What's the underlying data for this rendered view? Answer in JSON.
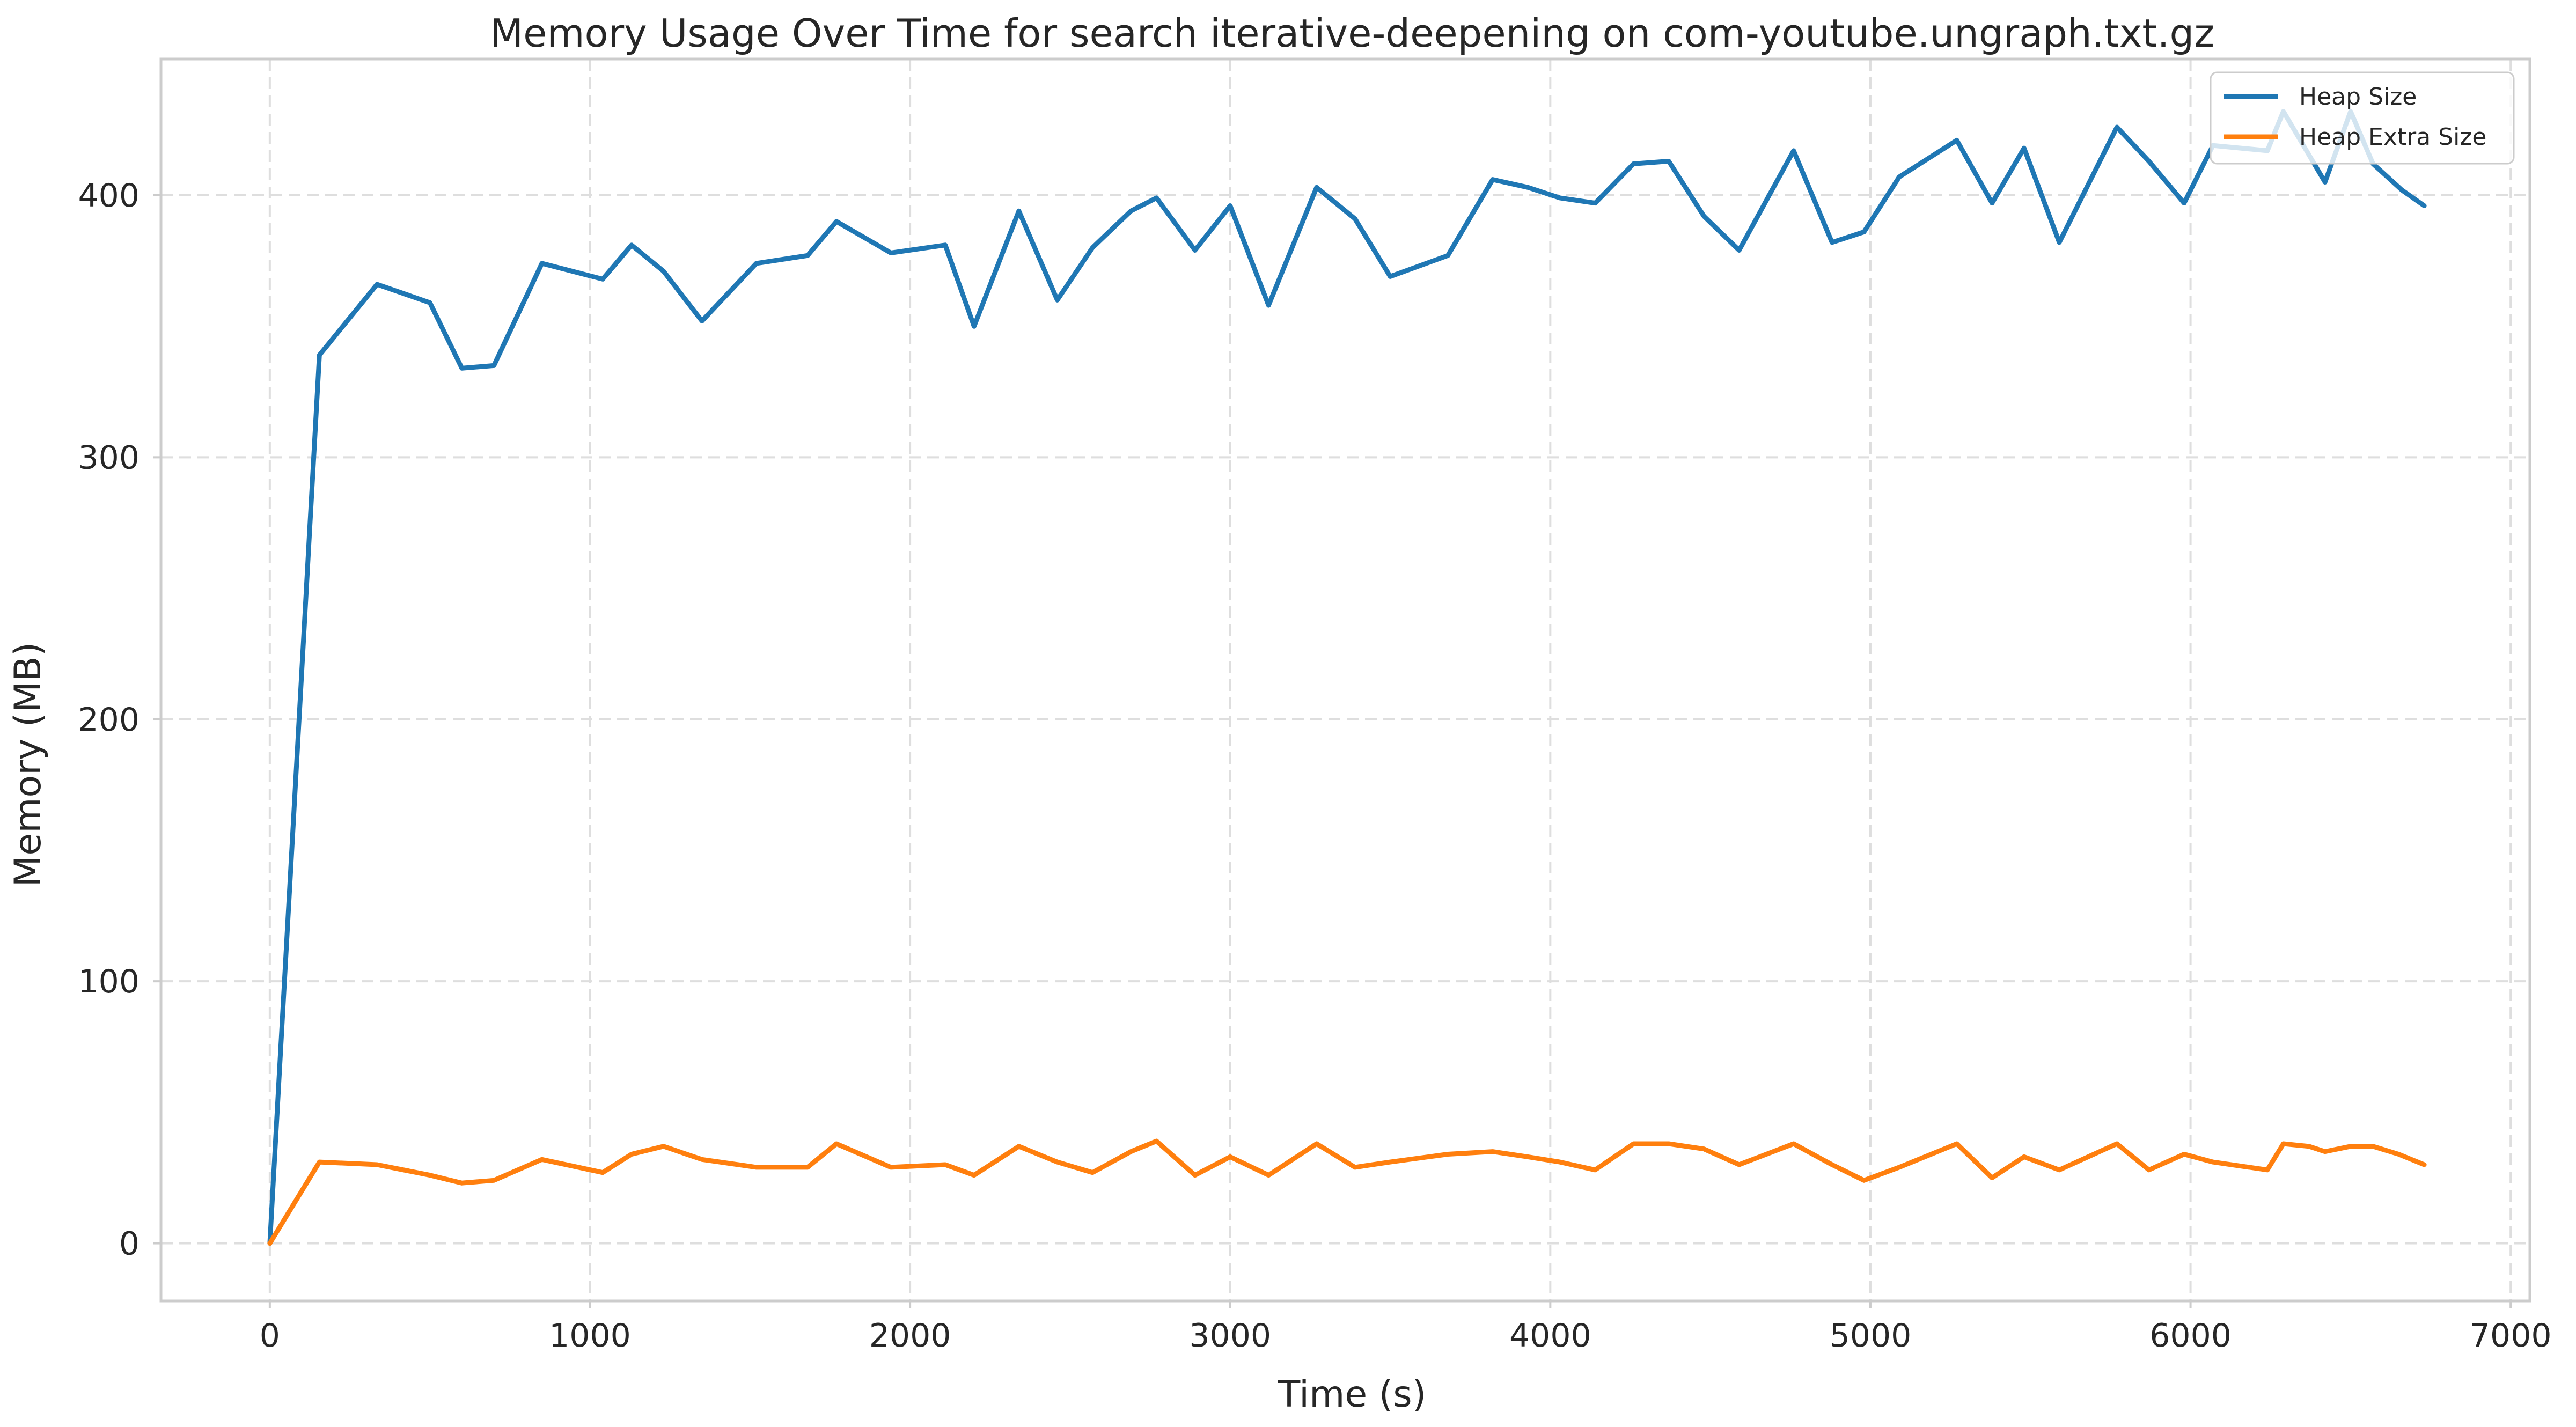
{
  "chart_data": {
    "type": "line",
    "title": "Memory Usage Over Time for search iterative-deepening on com-youtube.ungraph.txt.gz",
    "xlabel": "Time (s)",
    "ylabel": "Memory (MB)",
    "xlim": [
      -340,
      7060
    ],
    "ylim": [
      -22,
      452
    ],
    "xticks": [
      0,
      1000,
      2000,
      3000,
      4000,
      5000,
      6000,
      7000
    ],
    "yticks": [
      0,
      100,
      200,
      300,
      400
    ],
    "grid": true,
    "legend_position": "top-right",
    "series": [
      {
        "name": "Heap Size",
        "color": "#1f77b4",
        "x": [
          0,
          155,
          335,
          500,
          600,
          700,
          850,
          1040,
          1130,
          1230,
          1350,
          1520,
          1680,
          1770,
          1940,
          2110,
          2200,
          2340,
          2460,
          2570,
          2690,
          2770,
          2890,
          3000,
          3120,
          3270,
          3390,
          3500,
          3680,
          3820,
          3930,
          4030,
          4140,
          4260,
          4370,
          4480,
          4590,
          4760,
          4880,
          4980,
          5090,
          5270,
          5380,
          5480,
          5590,
          5770,
          5870,
          5980,
          6070,
          6240,
          6290,
          6420,
          6500,
          6570,
          6660,
          6730
        ],
        "values": [
          0,
          339,
          366,
          359,
          334,
          335,
          374,
          368,
          381,
          371,
          352,
          374,
          377,
          390,
          378,
          381,
          350,
          394,
          360,
          380,
          394,
          399,
          379,
          396,
          358,
          403,
          391,
          369,
          377,
          406,
          403,
          399,
          397,
          412,
          413,
          392,
          379,
          417,
          382,
          386,
          407,
          421,
          397,
          418,
          382,
          426,
          413,
          397,
          419,
          417,
          432,
          405,
          432,
          412,
          402,
          396
        ]
      },
      {
        "name": "Heap Extra Size",
        "color": "#ff7f0e",
        "x": [
          0,
          155,
          335,
          500,
          600,
          700,
          850,
          1040,
          1130,
          1230,
          1350,
          1520,
          1680,
          1770,
          1940,
          2110,
          2200,
          2340,
          2460,
          2570,
          2690,
          2770,
          2890,
          3000,
          3120,
          3270,
          3390,
          3500,
          3680,
          3820,
          3930,
          4030,
          4140,
          4260,
          4370,
          4480,
          4590,
          4760,
          4880,
          4980,
          5090,
          5270,
          5380,
          5480,
          5590,
          5770,
          5870,
          5980,
          6070,
          6240,
          6290,
          6370,
          6420,
          6500,
          6570,
          6650,
          6730
        ],
        "values": [
          0,
          31,
          30,
          26,
          23,
          24,
          32,
          27,
          34,
          37,
          32,
          29,
          29,
          38,
          29,
          30,
          26,
          37,
          31,
          27,
          35,
          39,
          26,
          33,
          26,
          38,
          29,
          31,
          34,
          35,
          33,
          31,
          28,
          38,
          38,
          36,
          30,
          38,
          30,
          24,
          29,
          38,
          25,
          33,
          28,
          38,
          28,
          34,
          31,
          28,
          38,
          37,
          35,
          37,
          37,
          34,
          30
        ]
      }
    ]
  }
}
